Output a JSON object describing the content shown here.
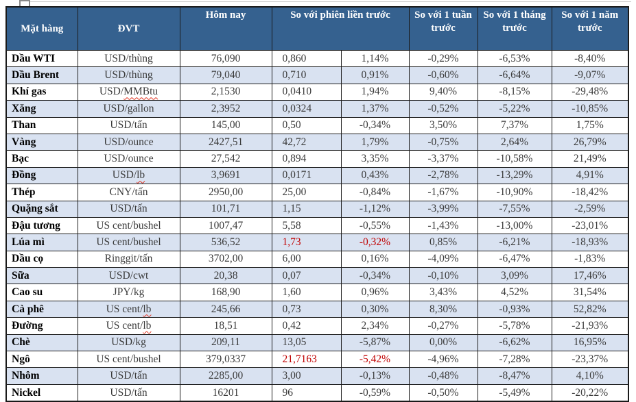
{
  "colors": {
    "header_bg": "#35618F",
    "header_text": "#FFFFFF",
    "alt_row_bg": "#D9E2F1",
    "body_text": "#3A3A3A",
    "border": "#1A1A1A",
    "negative_highlight": "#C00000",
    "spellcheck_squiggle": "#E0321F"
  },
  "icons": {
    "table_move_handle": "table-handle"
  },
  "table": {
    "headers": {
      "commodity": "Mặt hàng",
      "unit": "ĐVT",
      "today": "Hôm nay",
      "vs_prev_session": "So với phiên liền trước",
      "vs_week": "So với 1 tuần trước",
      "vs_month": "So với 1 tháng trước",
      "vs_year": "So với 1 năm trước"
    },
    "rows": [
      {
        "name": "Dầu WTI",
        "unit": "USD/thùng",
        "today": "76,090",
        "change": "0,860",
        "pct_session": "1,14%",
        "pct_week": "-0,29%",
        "pct_month": "-6,53%",
        "pct_year": "-8,40%",
        "red": false,
        "unit_squiggle": null
      },
      {
        "name": "Dầu Brent",
        "unit": "USD/thùng",
        "today": "79,040",
        "change": "0,710",
        "pct_session": "0,91%",
        "pct_week": "-0,60%",
        "pct_month": "-6,64%",
        "pct_year": "-9,07%",
        "red": false,
        "unit_squiggle": null
      },
      {
        "name": "Khí gas",
        "unit": "USD/MMBtu",
        "today": "2,1530",
        "change": "0,0410",
        "pct_session": "1,94%",
        "pct_week": "9,40%",
        "pct_month": "-8,15%",
        "pct_year": "-29,48%",
        "red": false,
        "unit_squiggle": "MMBtu"
      },
      {
        "name": "Xăng",
        "unit": "USD/gallon",
        "today": "2,3952",
        "change": "0,0324",
        "pct_session": "1,37%",
        "pct_week": "-0,52%",
        "pct_month": "-5,22%",
        "pct_year": "-10,85%",
        "red": false,
        "unit_squiggle": null
      },
      {
        "name": "Than",
        "unit": "USD/tấn",
        "today": "145,00",
        "change": "0,50",
        "pct_session": "-0,34%",
        "pct_week": "3,50%",
        "pct_month": "7,37%",
        "pct_year": "1,75%",
        "red": false,
        "unit_squiggle": null
      },
      {
        "name": "Vàng",
        "unit": "USD/ounce",
        "today": "2427,51",
        "change": "42,72",
        "pct_session": "1,79%",
        "pct_week": "-0,75%",
        "pct_month": "2,64%",
        "pct_year": "26,79%",
        "red": false,
        "unit_squiggle": null
      },
      {
        "name": "Bạc",
        "unit": "USD/ounce",
        "today": "27,542",
        "change": "0,894",
        "pct_session": "3,35%",
        "pct_week": "-3,37%",
        "pct_month": "-10,58%",
        "pct_year": "21,49%",
        "red": false,
        "unit_squiggle": null
      },
      {
        "name": "Đồng",
        "unit": "USD/lb",
        "today": "3,9691",
        "change": "0,0171",
        "pct_session": "0,43%",
        "pct_week": "-2,78%",
        "pct_month": "-13,29%",
        "pct_year": "4,91%",
        "red": false,
        "unit_squiggle": "lb"
      },
      {
        "name": "Thép",
        "unit": "CNY/tấn",
        "today": "2950,00",
        "change": "25,00",
        "pct_session": "-0,84%",
        "pct_week": "-1,67%",
        "pct_month": "-10,90%",
        "pct_year": "-18,42%",
        "red": false,
        "unit_squiggle": null
      },
      {
        "name": "Quặng sắt",
        "unit": "USD/tấn",
        "today": "101,71",
        "change": "1,15",
        "pct_session": "-1,12%",
        "pct_week": "-3,99%",
        "pct_month": "-7,55%",
        "pct_year": "-2,59%",
        "red": false,
        "unit_squiggle": null
      },
      {
        "name": "Đậu tương",
        "unit": "US cent/bushel",
        "today": "1007,47",
        "change": "5,58",
        "pct_session": "-0,55%",
        "pct_week": "-1,43%",
        "pct_month": "-13,00%",
        "pct_year": "-23,01%",
        "red": false,
        "unit_squiggle": null
      },
      {
        "name": "Lúa mì",
        "unit": "US cent/bushel",
        "today": "536,52",
        "change": "1,73",
        "pct_session": "-0,32%",
        "pct_week": "0,85%",
        "pct_month": "-6,21%",
        "pct_year": "-18,93%",
        "red": true,
        "unit_squiggle": null
      },
      {
        "name": "Dầu cọ",
        "unit": "Ringgit/tấn",
        "today": "3702,00",
        "change": "6,00",
        "pct_session": "0,16%",
        "pct_week": "-4,09%",
        "pct_month": "-6,47%",
        "pct_year": "-1,83%",
        "red": false,
        "unit_squiggle": null
      },
      {
        "name": "Sữa",
        "unit": "USD/cwt",
        "today": "20,38",
        "change": "0,07",
        "pct_session": "-0,34%",
        "pct_week": "-0,10%",
        "pct_month": "3,09%",
        "pct_year": "17,46%",
        "red": false,
        "unit_squiggle": null
      },
      {
        "name": "Cao su",
        "unit": "JPY/kg",
        "today": "168,90",
        "change": "1,60",
        "pct_session": "0,96%",
        "pct_week": "3,43%",
        "pct_month": "4,52%",
        "pct_year": "31,54%",
        "red": false,
        "unit_squiggle": null
      },
      {
        "name": "Cà phê",
        "unit": "US cent/lb",
        "today": "245,66",
        "change": "0,73",
        "pct_session": "0,30%",
        "pct_week": "8,30%",
        "pct_month": "-0,93%",
        "pct_year": "52,82%",
        "red": false,
        "unit_squiggle": "lb"
      },
      {
        "name": "Đường",
        "unit": "US cent/lb",
        "today": "18,51",
        "change": "0,42",
        "pct_session": "2,34%",
        "pct_week": "-0,27%",
        "pct_month": "-5,78%",
        "pct_year": "-21,93%",
        "red": false,
        "unit_squiggle": "lb"
      },
      {
        "name": "Chè",
        "unit": "USD/kg",
        "today": "209,11",
        "change": "13,05",
        "pct_session": "-5,87%",
        "pct_week": "0,00%",
        "pct_month": "-6,62%",
        "pct_year": "16,95%",
        "red": false,
        "unit_squiggle": null
      },
      {
        "name": "Ngô",
        "unit": "US cent/bushel",
        "today": "379,0337",
        "change": "21,7163",
        "pct_session": "-5,42%",
        "pct_week": "-4,96%",
        "pct_month": "-7,28%",
        "pct_year": "-23,37%",
        "red": true,
        "unit_squiggle": null
      },
      {
        "name": "Nhôm",
        "unit": "USD/tấn",
        "today": "2285,00",
        "change": "3,00",
        "pct_session": "-0,13%",
        "pct_week": "-0,48%",
        "pct_month": "-8,47%",
        "pct_year": "4,10%",
        "red": false,
        "unit_squiggle": null
      },
      {
        "name": "Nickel",
        "unit": "USD/tấn",
        "today": "16201",
        "change": "96",
        "pct_session": "-0,59%",
        "pct_week": "-0,50%",
        "pct_month": "-5,49%",
        "pct_year": "-20,22%",
        "red": false,
        "unit_squiggle": null
      }
    ]
  }
}
